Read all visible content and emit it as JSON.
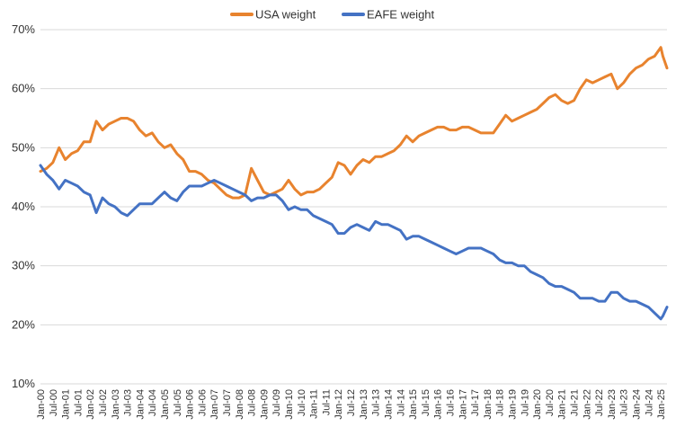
{
  "chart_data": {
    "type": "line",
    "ylim": [
      10,
      70
    ],
    "y_ticks": [
      10,
      20,
      30,
      40,
      50,
      60,
      70
    ],
    "y_tick_labels": [
      "10%",
      "20%",
      "30%",
      "40%",
      "50%",
      "60%",
      "70%"
    ],
    "grid": "horizontal",
    "legend_position": "top-center",
    "x_start": "2000-01",
    "x_end": "2025-04",
    "x_tick_labels": [
      "Jan-00",
      "Jul-00",
      "Jan-01",
      "Jul-01",
      "Jan-02",
      "Jul-02",
      "Jan-03",
      "Jul-03",
      "Jan-04",
      "Jul-04",
      "Jan-05",
      "Jul-05",
      "Jan-06",
      "Jul-06",
      "Jan-07",
      "Jul-07",
      "Jan-08",
      "Jul-08",
      "Jan-09",
      "Jul-09",
      "Jan-10",
      "Jul-10",
      "Jan-11",
      "Jul-11",
      "Jan-12",
      "Jul-12",
      "Jan-13",
      "Jul-13",
      "Jan-14",
      "Jul-14",
      "Jan-15",
      "Jul-15",
      "Jan-16",
      "Jul-16",
      "Jan-17",
      "Jul-17",
      "Jan-18",
      "Jul-18",
      "Jan-19",
      "Jul-19",
      "Jan-20",
      "Jul-20",
      "Jan-21",
      "Jul-21",
      "Jan-22",
      "Jul-22",
      "Jan-23",
      "Jul-23",
      "Jan-24",
      "Jul-24",
      "Jan-25"
    ],
    "series": [
      {
        "name": "USA weight",
        "color": "#E8832E",
        "points": [
          [
            "2000-01",
            46
          ],
          [
            "2000-04",
            46.5
          ],
          [
            "2000-07",
            47.5
          ],
          [
            "2000-10",
            50
          ],
          [
            "2001-01",
            48
          ],
          [
            "2001-04",
            49
          ],
          [
            "2001-07",
            49.5
          ],
          [
            "2001-10",
            51
          ],
          [
            "2002-01",
            51
          ],
          [
            "2002-04",
            54.5
          ],
          [
            "2002-07",
            53
          ],
          [
            "2002-10",
            54
          ],
          [
            "2003-01",
            54.5
          ],
          [
            "2003-04",
            55
          ],
          [
            "2003-07",
            55
          ],
          [
            "2003-10",
            54.5
          ],
          [
            "2004-01",
            53
          ],
          [
            "2004-04",
            52
          ],
          [
            "2004-07",
            52.5
          ],
          [
            "2004-10",
            51
          ],
          [
            "2005-01",
            50
          ],
          [
            "2005-04",
            50.5
          ],
          [
            "2005-07",
            49
          ],
          [
            "2005-10",
            48
          ],
          [
            "2006-01",
            46
          ],
          [
            "2006-04",
            46
          ],
          [
            "2006-07",
            45.5
          ],
          [
            "2006-10",
            44.5
          ],
          [
            "2007-01",
            44
          ],
          [
            "2007-04",
            43
          ],
          [
            "2007-07",
            42
          ],
          [
            "2007-10",
            41.5
          ],
          [
            "2008-01",
            41.5
          ],
          [
            "2008-04",
            42
          ],
          [
            "2008-07",
            46.5
          ],
          [
            "2008-10",
            44.5
          ],
          [
            "2009-01",
            42.5
          ],
          [
            "2009-04",
            42
          ],
          [
            "2009-07",
            42.5
          ],
          [
            "2009-10",
            43
          ],
          [
            "2010-01",
            44.5
          ],
          [
            "2010-04",
            43
          ],
          [
            "2010-07",
            42
          ],
          [
            "2010-10",
            42.5
          ],
          [
            "2011-01",
            42.5
          ],
          [
            "2011-04",
            43
          ],
          [
            "2011-07",
            44
          ],
          [
            "2011-10",
            45
          ],
          [
            "2012-01",
            47.5
          ],
          [
            "2012-04",
            47
          ],
          [
            "2012-07",
            45.5
          ],
          [
            "2012-10",
            47
          ],
          [
            "2013-01",
            48
          ],
          [
            "2013-04",
            47.5
          ],
          [
            "2013-07",
            48.5
          ],
          [
            "2013-10",
            48.5
          ],
          [
            "2014-01",
            49
          ],
          [
            "2014-04",
            49.5
          ],
          [
            "2014-07",
            50.5
          ],
          [
            "2014-10",
            52
          ],
          [
            "2015-01",
            51
          ],
          [
            "2015-04",
            52
          ],
          [
            "2015-07",
            52.5
          ],
          [
            "2015-10",
            53
          ],
          [
            "2016-01",
            53.5
          ],
          [
            "2016-04",
            53.5
          ],
          [
            "2016-07",
            53
          ],
          [
            "2016-10",
            53
          ],
          [
            "2017-01",
            53.5
          ],
          [
            "2017-04",
            53.5
          ],
          [
            "2017-07",
            53
          ],
          [
            "2017-10",
            52.5
          ],
          [
            "2018-01",
            52.5
          ],
          [
            "2018-04",
            52.5
          ],
          [
            "2018-07",
            54
          ],
          [
            "2018-10",
            55.5
          ],
          [
            "2019-01",
            54.5
          ],
          [
            "2019-04",
            55
          ],
          [
            "2019-07",
            55.5
          ],
          [
            "2019-10",
            56
          ],
          [
            "2020-01",
            56.5
          ],
          [
            "2020-04",
            57.5
          ],
          [
            "2020-07",
            58.5
          ],
          [
            "2020-10",
            59
          ],
          [
            "2021-01",
            58
          ],
          [
            "2021-04",
            57.5
          ],
          [
            "2021-07",
            58
          ],
          [
            "2021-10",
            60
          ],
          [
            "2022-01",
            61.5
          ],
          [
            "2022-04",
            61
          ],
          [
            "2022-07",
            61.5
          ],
          [
            "2022-10",
            62
          ],
          [
            "2023-01",
            62.5
          ],
          [
            "2023-04",
            60
          ],
          [
            "2023-07",
            61
          ],
          [
            "2023-10",
            62.5
          ],
          [
            "2024-01",
            63.5
          ],
          [
            "2024-04",
            64
          ],
          [
            "2024-07",
            65
          ],
          [
            "2024-10",
            65.5
          ],
          [
            "2025-01",
            67
          ],
          [
            "2025-02",
            65.5
          ],
          [
            "2025-04",
            63.5
          ]
        ]
      },
      {
        "name": "EAFE weight",
        "color": "#4472C4",
        "points": [
          [
            "2000-01",
            47
          ],
          [
            "2000-04",
            45.5
          ],
          [
            "2000-07",
            44.5
          ],
          [
            "2000-10",
            43
          ],
          [
            "2001-01",
            44.5
          ],
          [
            "2001-04",
            44
          ],
          [
            "2001-07",
            43.5
          ],
          [
            "2001-10",
            42.5
          ],
          [
            "2002-01",
            42
          ],
          [
            "2002-04",
            39
          ],
          [
            "2002-07",
            41.5
          ],
          [
            "2002-10",
            40.5
          ],
          [
            "2003-01",
            40
          ],
          [
            "2003-04",
            39
          ],
          [
            "2003-07",
            38.5
          ],
          [
            "2003-10",
            39.5
          ],
          [
            "2004-01",
            40.5
          ],
          [
            "2004-04",
            40.5
          ],
          [
            "2004-07",
            40.5
          ],
          [
            "2004-10",
            41.5
          ],
          [
            "2005-01",
            42.5
          ],
          [
            "2005-04",
            41.5
          ],
          [
            "2005-07",
            41
          ],
          [
            "2005-10",
            42.5
          ],
          [
            "2006-01",
            43.5
          ],
          [
            "2006-04",
            43.5
          ],
          [
            "2006-07",
            43.5
          ],
          [
            "2006-10",
            44
          ],
          [
            "2007-01",
            44.5
          ],
          [
            "2007-04",
            44
          ],
          [
            "2007-07",
            43.5
          ],
          [
            "2007-10",
            43
          ],
          [
            "2008-01",
            42.5
          ],
          [
            "2008-04",
            42
          ],
          [
            "2008-07",
            41
          ],
          [
            "2008-10",
            41.5
          ],
          [
            "2009-01",
            41.5
          ],
          [
            "2009-04",
            42
          ],
          [
            "2009-07",
            42
          ],
          [
            "2009-10",
            41
          ],
          [
            "2010-01",
            39.5
          ],
          [
            "2010-04",
            40
          ],
          [
            "2010-07",
            39.5
          ],
          [
            "2010-10",
            39.5
          ],
          [
            "2011-01",
            38.5
          ],
          [
            "2011-04",
            38
          ],
          [
            "2011-07",
            37.5
          ],
          [
            "2011-10",
            37
          ],
          [
            "2012-01",
            35.5
          ],
          [
            "2012-04",
            35.5
          ],
          [
            "2012-07",
            36.5
          ],
          [
            "2012-10",
            37
          ],
          [
            "2013-01",
            36.5
          ],
          [
            "2013-04",
            36
          ],
          [
            "2013-07",
            37.5
          ],
          [
            "2013-10",
            37
          ],
          [
            "2014-01",
            37
          ],
          [
            "2014-04",
            36.5
          ],
          [
            "2014-07",
            36
          ],
          [
            "2014-10",
            34.5
          ],
          [
            "2015-01",
            35
          ],
          [
            "2015-04",
            35
          ],
          [
            "2015-07",
            34.5
          ],
          [
            "2015-10",
            34
          ],
          [
            "2016-01",
            33.5
          ],
          [
            "2016-04",
            33
          ],
          [
            "2016-07",
            32.5
          ],
          [
            "2016-10",
            32
          ],
          [
            "2017-01",
            32.5
          ],
          [
            "2017-04",
            33
          ],
          [
            "2017-07",
            33
          ],
          [
            "2017-10",
            33
          ],
          [
            "2018-01",
            32.5
          ],
          [
            "2018-04",
            32
          ],
          [
            "2018-07",
            31
          ],
          [
            "2018-10",
            30.5
          ],
          [
            "2019-01",
            30.5
          ],
          [
            "2019-04",
            30
          ],
          [
            "2019-07",
            30
          ],
          [
            "2019-10",
            29
          ],
          [
            "2020-01",
            28.5
          ],
          [
            "2020-04",
            28
          ],
          [
            "2020-07",
            27
          ],
          [
            "2020-10",
            26.5
          ],
          [
            "2021-01",
            26.5
          ],
          [
            "2021-04",
            26
          ],
          [
            "2021-07",
            25.5
          ],
          [
            "2021-10",
            24.5
          ],
          [
            "2022-01",
            24.5
          ],
          [
            "2022-04",
            24.5
          ],
          [
            "2022-07",
            24
          ],
          [
            "2022-10",
            24
          ],
          [
            "2023-01",
            25.5
          ],
          [
            "2023-04",
            25.5
          ],
          [
            "2023-07",
            24.5
          ],
          [
            "2023-10",
            24
          ],
          [
            "2024-01",
            24
          ],
          [
            "2024-04",
            23.5
          ],
          [
            "2024-07",
            23
          ],
          [
            "2024-10",
            22
          ],
          [
            "2025-01",
            21
          ],
          [
            "2025-02",
            21.5
          ],
          [
            "2025-04",
            23
          ]
        ]
      }
    ]
  }
}
